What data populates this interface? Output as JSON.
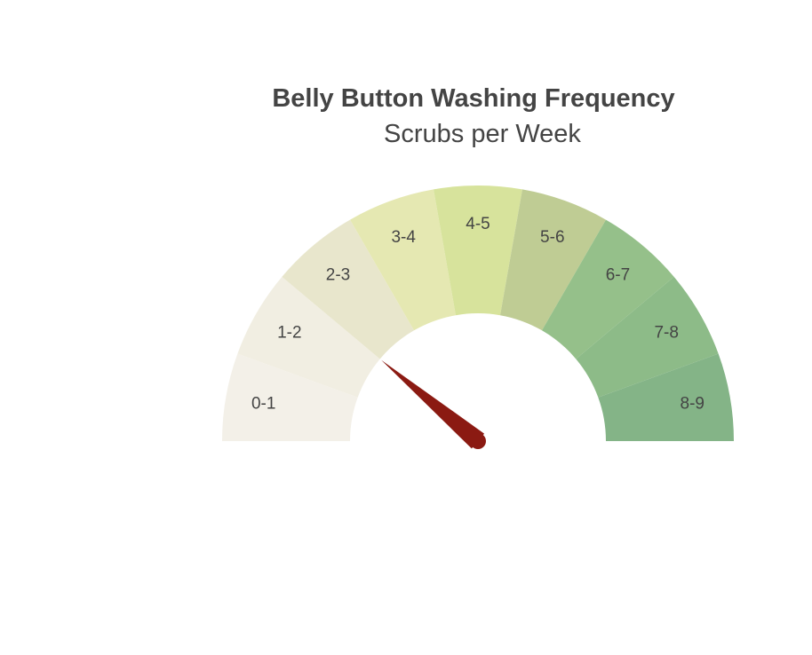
{
  "chart_data": {
    "type": "gauge",
    "title": "Belly Button Washing Frequency",
    "subtitle": "Scrubs per Week",
    "range": [
      0,
      9
    ],
    "value": 2,
    "segments": [
      {
        "label": "0-1",
        "from": 0,
        "to": 1,
        "color": "#f3f0e8"
      },
      {
        "label": "1-2",
        "from": 1,
        "to": 2,
        "color": "#f1eee2"
      },
      {
        "label": "2-3",
        "from": 2,
        "to": 3,
        "color": "#e8e6cc"
      },
      {
        "label": "3-4",
        "from": 3,
        "to": 4,
        "color": "#e5e8b2"
      },
      {
        "label": "4-5",
        "from": 4,
        "to": 5,
        "color": "#d7e39c"
      },
      {
        "label": "5-6",
        "from": 5,
        "to": 6,
        "color": "#bfcc94"
      },
      {
        "label": "6-7",
        "from": 6,
        "to": 7,
        "color": "#95c08a"
      },
      {
        "label": "7-8",
        "from": 7,
        "to": 8,
        "color": "#8dbb88"
      },
      {
        "label": "8-9",
        "from": 8,
        "to": 9,
        "color": "#84b487"
      }
    ],
    "needle_color": "#8b1a12"
  }
}
